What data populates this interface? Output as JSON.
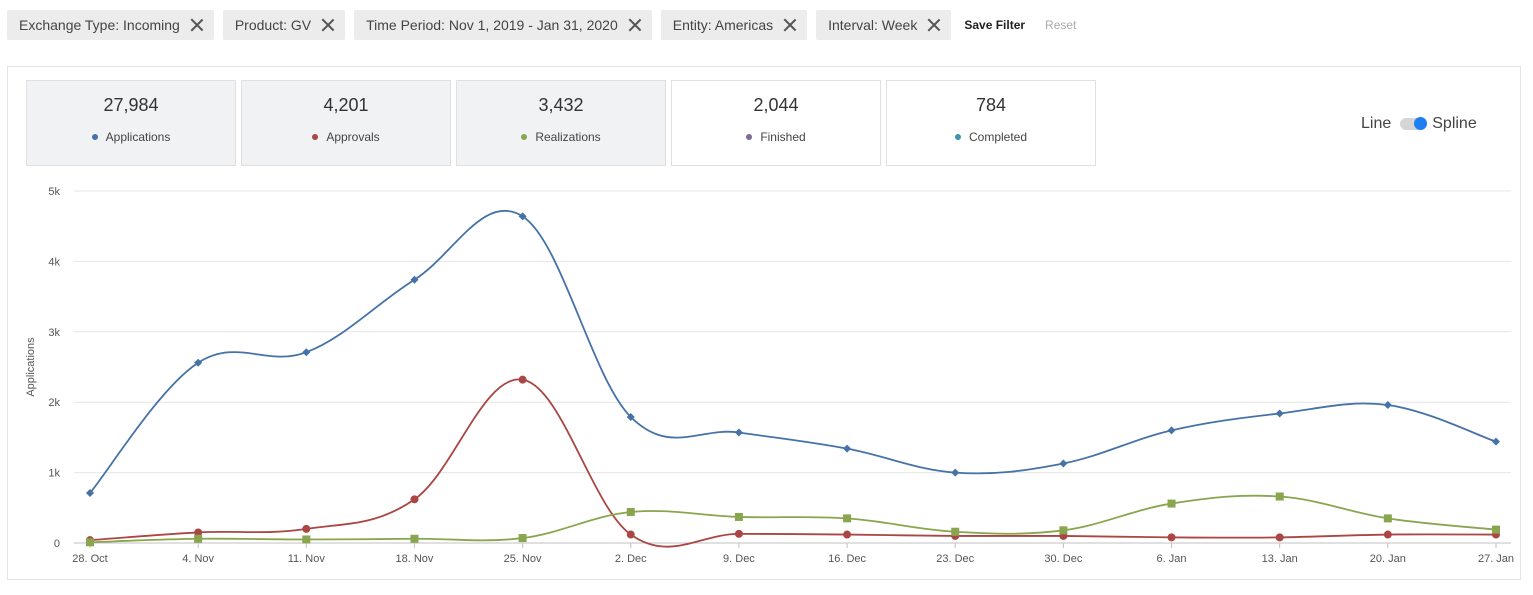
{
  "filters": [
    {
      "label": "Exchange Type: Incoming"
    },
    {
      "label": "Product: GV"
    },
    {
      "label": "Time Period: Nov 1, 2019 - Jan 31, 2020"
    },
    {
      "label": "Entity: Americas"
    },
    {
      "label": "Interval: Week"
    }
  ],
  "save_filter_label": "Save Filter",
  "reset_label": "Reset",
  "stats": [
    {
      "value": "27,984",
      "label": "Applications",
      "color": "#4572a7"
    },
    {
      "value": "4,201",
      "label": "Approvals",
      "color": "#aa4643"
    },
    {
      "value": "3,432",
      "label": "Realizations",
      "color": "#89a54e"
    },
    {
      "value": "2,044",
      "label": "Finished",
      "color": "#80699b"
    },
    {
      "value": "784",
      "label": "Completed",
      "color": "#3d96ae"
    }
  ],
  "toggle": {
    "left_label": "Line",
    "right_label": "Spline",
    "selected": "Spline"
  },
  "chart_data": {
    "type": "line",
    "ylabel": "Applications",
    "ylim": [
      0,
      5000
    ],
    "yticks": [
      "0",
      "1k",
      "2k",
      "3k",
      "4k",
      "5k"
    ],
    "grid": true,
    "categories": [
      "28. Oct",
      "4. Nov",
      "11. Nov",
      "18. Nov",
      "25. Nov",
      "2. Dec",
      "9. Dec",
      "16. Dec",
      "23. Dec",
      "30. Dec",
      "6. Jan",
      "13. Jan",
      "20. Jan",
      "27. Jan"
    ],
    "series": [
      {
        "key": "applications",
        "color": "#4572a7",
        "marker": "diamond",
        "values": [
          710,
          2560,
          2710,
          3740,
          4640,
          1790,
          1570,
          1340,
          1000,
          1130,
          1600,
          1840,
          1960,
          1440
        ]
      },
      {
        "key": "approvals",
        "color": "#aa4643",
        "marker": "circle",
        "values": [
          40,
          150,
          200,
          620,
          2320,
          120,
          130,
          120,
          100,
          100,
          80,
          80,
          120,
          120
        ]
      },
      {
        "key": "realizations",
        "color": "#89a54e",
        "marker": "square",
        "values": [
          10,
          60,
          50,
          60,
          70,
          440,
          370,
          350,
          160,
          180,
          560,
          660,
          350,
          190
        ]
      }
    ]
  }
}
